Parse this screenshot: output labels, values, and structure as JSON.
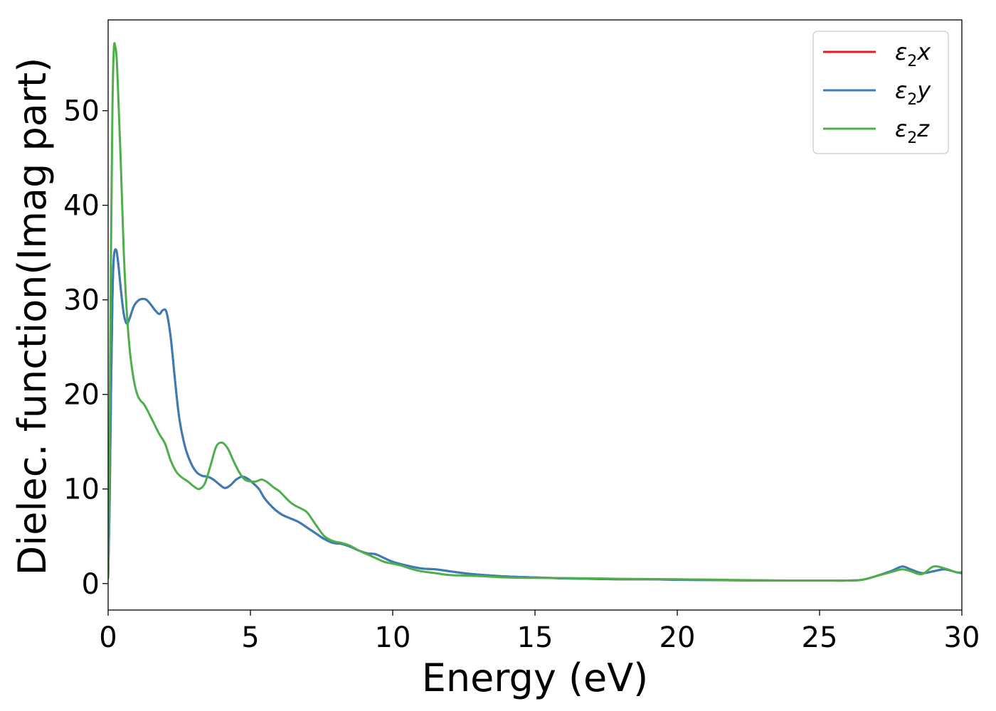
{
  "chart_data": {
    "type": "line",
    "title": "",
    "xlabel": "Energy (eV)",
    "ylabel": "Dielec. function(Imag part)",
    "xlim": [
      0,
      30
    ],
    "ylim": [
      -2.8,
      59.6
    ],
    "xticks": [
      0,
      5,
      10,
      15,
      20,
      25,
      30
    ],
    "yticks": [
      0,
      10,
      20,
      30,
      40,
      50
    ],
    "grid": false,
    "legend_position": "top-right",
    "series": [
      {
        "name": "ε",
        "sub": "2",
        "suffix": "x",
        "color": "#e41a1c",
        "x": [
          0,
          0.05,
          0.1,
          0.15,
          0.2,
          0.28,
          0.35,
          0.45,
          0.55,
          0.65,
          0.75,
          0.9,
          1.05,
          1.2,
          1.35,
          1.5,
          1.65,
          1.8,
          1.92,
          2.05,
          2.2,
          2.35,
          2.5,
          2.7,
          2.9,
          3.1,
          3.3,
          3.5,
          3.7,
          3.9,
          4.1,
          4.3,
          4.5,
          4.7,
          4.9,
          5.1,
          5.3,
          5.5,
          5.8,
          6.1,
          6.4,
          6.7,
          7.0,
          7.3,
          7.6,
          7.9,
          8.2,
          8.5,
          8.8,
          9.1,
          9.4,
          9.7,
          10.0,
          10.5,
          11.0,
          11.5,
          12.0,
          12.5,
          13.0,
          14.0,
          15.0,
          16.0,
          17.0,
          18.0,
          19.0,
          20.0,
          21.0,
          22.0,
          23.0,
          24.0,
          25.0,
          26.0,
          26.5,
          27.0,
          27.5,
          27.9,
          28.2,
          28.6,
          29.0,
          29.4,
          29.8,
          30.0
        ],
        "y": [
          0.5,
          8,
          20,
          30,
          34.5,
          35.3,
          34,
          31,
          28.5,
          27.5,
          28,
          29.3,
          29.9,
          30.1,
          30,
          29.5,
          28.9,
          28.5,
          28.9,
          28.7,
          26,
          21.5,
          17.5,
          14.5,
          12.8,
          11.8,
          11.4,
          11.3,
          11.0,
          10.5,
          10.1,
          10.4,
          11.0,
          11.3,
          11.1,
          10.6,
          10.0,
          9.0,
          8.0,
          7.3,
          6.9,
          6.5,
          5.9,
          5.3,
          4.7,
          4.3,
          4.2,
          3.9,
          3.5,
          3.2,
          3.1,
          2.7,
          2.3,
          1.9,
          1.6,
          1.5,
          1.3,
          1.1,
          0.95,
          0.75,
          0.65,
          0.55,
          0.5,
          0.45,
          0.45,
          0.4,
          0.38,
          0.35,
          0.33,
          0.32,
          0.32,
          0.32,
          0.4,
          0.8,
          1.3,
          1.8,
          1.5,
          1.1,
          1.3,
          1.5,
          1.2,
          1.1
        ]
      },
      {
        "name": "ε",
        "sub": "2",
        "suffix": "y",
        "color": "#377eb8",
        "x": [
          0,
          0.05,
          0.1,
          0.15,
          0.2,
          0.28,
          0.35,
          0.45,
          0.55,
          0.65,
          0.75,
          0.9,
          1.05,
          1.2,
          1.35,
          1.5,
          1.65,
          1.8,
          1.92,
          2.05,
          2.2,
          2.35,
          2.5,
          2.7,
          2.9,
          3.1,
          3.3,
          3.5,
          3.7,
          3.9,
          4.1,
          4.3,
          4.5,
          4.7,
          4.9,
          5.1,
          5.3,
          5.5,
          5.8,
          6.1,
          6.4,
          6.7,
          7.0,
          7.3,
          7.6,
          7.9,
          8.2,
          8.5,
          8.8,
          9.1,
          9.4,
          9.7,
          10.0,
          10.5,
          11.0,
          11.5,
          12.0,
          12.5,
          13.0,
          14.0,
          15.0,
          16.0,
          17.0,
          18.0,
          19.0,
          20.0,
          21.0,
          22.0,
          23.0,
          24.0,
          25.0,
          26.0,
          26.5,
          27.0,
          27.5,
          27.9,
          28.2,
          28.6,
          29.0,
          29.4,
          29.8,
          30.0
        ],
        "y": [
          0.5,
          8,
          20,
          30,
          34.5,
          35.3,
          34,
          31,
          28.5,
          27.5,
          28,
          29.3,
          29.9,
          30.1,
          30,
          29.5,
          28.9,
          28.5,
          28.9,
          28.7,
          26,
          21.5,
          17.5,
          14.5,
          12.8,
          11.8,
          11.4,
          11.3,
          11.0,
          10.5,
          10.1,
          10.4,
          11.0,
          11.3,
          11.1,
          10.6,
          10.0,
          9.0,
          8.0,
          7.3,
          6.9,
          6.5,
          5.9,
          5.3,
          4.7,
          4.3,
          4.2,
          3.9,
          3.5,
          3.2,
          3.1,
          2.7,
          2.3,
          1.9,
          1.6,
          1.5,
          1.3,
          1.1,
          0.95,
          0.75,
          0.65,
          0.55,
          0.5,
          0.45,
          0.45,
          0.4,
          0.38,
          0.35,
          0.33,
          0.32,
          0.32,
          0.32,
          0.4,
          0.8,
          1.3,
          1.8,
          1.5,
          1.1,
          1.3,
          1.5,
          1.2,
          1.1
        ]
      },
      {
        "name": "ε",
        "sub": "2",
        "suffix": "z",
        "color": "#4daf4a",
        "x": [
          0,
          0.05,
          0.1,
          0.15,
          0.2,
          0.25,
          0.3,
          0.35,
          0.45,
          0.55,
          0.65,
          0.75,
          0.85,
          0.95,
          1.05,
          1.15,
          1.25,
          1.4,
          1.6,
          1.8,
          2.0,
          2.2,
          2.4,
          2.6,
          2.8,
          3.0,
          3.2,
          3.4,
          3.6,
          3.8,
          4.0,
          4.2,
          4.4,
          4.6,
          4.8,
          5.0,
          5.2,
          5.4,
          5.6,
          5.8,
          6.0,
          6.2,
          6.4,
          6.6,
          6.8,
          7.0,
          7.3,
          7.6,
          7.9,
          8.2,
          8.5,
          8.8,
          9.1,
          9.4,
          9.7,
          10.0,
          10.3,
          10.6,
          11.0,
          11.5,
          12.0,
          12.5,
          13.0,
          14.0,
          15.0,
          16.0,
          17.0,
          18.0,
          19.0,
          20.0,
          21.0,
          22.0,
          23.0,
          24.0,
          25.0,
          26.0,
          26.5,
          27.0,
          27.5,
          27.9,
          28.2,
          28.6,
          29.0,
          29.4,
          29.8,
          30.0
        ],
        "y": [
          0.5,
          15,
          35,
          50,
          56.5,
          56.8,
          55.5,
          52,
          44,
          35,
          29,
          25,
          22.5,
          20.8,
          19.8,
          19.3,
          19.0,
          18.2,
          17.0,
          15.8,
          14.8,
          13.0,
          11.8,
          11.2,
          10.8,
          10.3,
          10.0,
          10.6,
          12.5,
          14.5,
          14.9,
          14.3,
          13.0,
          11.8,
          11.0,
          10.8,
          10.8,
          11.0,
          10.7,
          10.2,
          9.8,
          9.2,
          8.6,
          8.2,
          7.9,
          7.5,
          6.2,
          5.0,
          4.5,
          4.3,
          4.0,
          3.5,
          3.1,
          2.7,
          2.3,
          2.1,
          1.9,
          1.6,
          1.3,
          1.1,
          0.9,
          0.85,
          0.8,
          0.65,
          0.6,
          0.58,
          0.55,
          0.5,
          0.48,
          0.45,
          0.42,
          0.38,
          0.35,
          0.32,
          0.32,
          0.32,
          0.4,
          0.8,
          1.2,
          1.5,
          1.3,
          1.0,
          1.8,
          1.6,
          1.2,
          1.2
        ]
      }
    ]
  }
}
